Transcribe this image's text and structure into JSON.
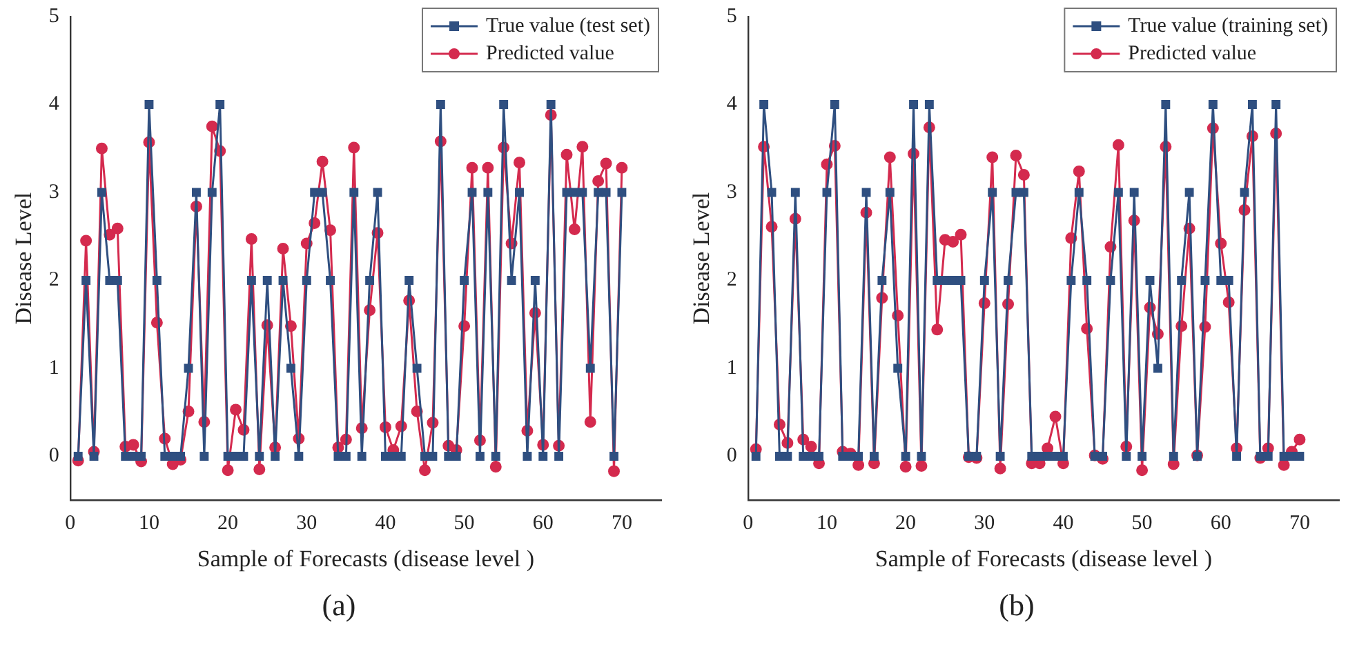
{
  "chart_data": [
    {
      "type": "line",
      "xlabel": "Sample of Forecasts (disease level )",
      "ylabel": "Disease Level",
      "annotations": [
        "(a)"
      ],
      "legend": "top right",
      "grid": false,
      "line_style": "solid",
      "xlim": [
        0,
        75
      ],
      "ylim": [
        -0.5,
        5
      ],
      "xticks": [
        0,
        10,
        20,
        30,
        40,
        50,
        60,
        70
      ],
      "yticks": [
        0,
        1,
        2,
        3,
        4,
        5
      ],
      "x": [
        1,
        2,
        3,
        4,
        5,
        6,
        7,
        8,
        9,
        10,
        11,
        12,
        13,
        14,
        15,
        16,
        17,
        18,
        19,
        20,
        21,
        22,
        23,
        24,
        25,
        26,
        27,
        28,
        29,
        30,
        31,
        32,
        33,
        34,
        35,
        36,
        37,
        38,
        39,
        40,
        41,
        42,
        43,
        44,
        45,
        46,
        47,
        48,
        49,
        50,
        51,
        52,
        53,
        54,
        55,
        56,
        57,
        58,
        59,
        60,
        61,
        62,
        63,
        64,
        65,
        66,
        67,
        68,
        69,
        70
      ],
      "series": [
        {
          "name": "True value (test set)",
          "color": "#2f4f80",
          "marker": "square",
          "values": [
            0,
            2,
            0,
            3,
            2,
            2,
            0,
            0,
            0,
            4,
            2,
            0,
            0,
            0,
            1,
            3,
            0,
            3,
            4,
            0,
            0,
            0,
            2,
            0,
            2,
            0,
            2,
            1,
            0,
            2,
            3,
            3,
            2,
            0,
            0,
            3,
            0,
            2,
            3,
            0,
            0,
            0,
            2,
            1,
            0,
            0,
            4,
            0,
            0,
            2,
            3,
            0,
            3,
            0,
            4,
            2,
            3,
            0,
            2,
            0,
            4,
            0,
            3,
            3,
            3,
            1,
            3,
            3,
            0,
            3
          ]
        },
        {
          "name": "Predicted value",
          "color": "#d42a4e",
          "marker": "circle",
          "values": [
            -0.05,
            2.45,
            0.05,
            3.5,
            2.52,
            2.59,
            0.11,
            0.13,
            -0.06,
            3.57,
            1.52,
            0.2,
            -0.09,
            -0.04,
            0.51,
            2.84,
            0.39,
            3.75,
            3.47,
            -0.16,
            0.53,
            0.3,
            2.47,
            -0.15,
            1.49,
            0.1,
            2.36,
            1.48,
            0.2,
            2.42,
            2.65,
            3.35,
            2.57,
            0.1,
            0.19,
            3.51,
            0.32,
            1.66,
            2.54,
            0.33,
            0.07,
            0.34,
            1.77,
            0.51,
            -0.16,
            0.38,
            3.58,
            0.12,
            0.07,
            1.48,
            3.28,
            0.18,
            3.28,
            -0.12,
            3.51,
            2.42,
            3.34,
            0.29,
            1.63,
            0.13,
            3.88,
            0.12,
            3.43,
            2.58,
            3.52,
            0.39,
            3.13,
            3.33,
            -0.17,
            3.28
          ]
        }
      ]
    },
    {
      "type": "line",
      "xlabel": "Sample of Forecasts (disease level )",
      "ylabel": "Disease Level",
      "annotations": [
        "(b)"
      ],
      "legend": "top right",
      "grid": false,
      "line_style": "solid",
      "xlim": [
        0,
        75
      ],
      "ylim": [
        -0.5,
        5
      ],
      "xticks": [
        0,
        10,
        20,
        30,
        40,
        50,
        60,
        70
      ],
      "yticks": [
        0,
        1,
        2,
        3,
        4,
        5
      ],
      "x": [
        1,
        2,
        3,
        4,
        5,
        6,
        7,
        8,
        9,
        10,
        11,
        12,
        13,
        14,
        15,
        16,
        17,
        18,
        19,
        20,
        21,
        22,
        23,
        24,
        25,
        26,
        27,
        28,
        29,
        30,
        31,
        32,
        33,
        34,
        35,
        36,
        37,
        38,
        39,
        40,
        41,
        42,
        43,
        44,
        45,
        46,
        47,
        48,
        49,
        50,
        51,
        52,
        53,
        54,
        55,
        56,
        57,
        58,
        59,
        60,
        61,
        62,
        63,
        64,
        65,
        66,
        67,
        68,
        69,
        70
      ],
      "series": [
        {
          "name": "True value (training set)",
          "color": "#2f4f80",
          "marker": "square",
          "values": [
            0,
            4,
            3,
            0,
            0,
            3,
            0,
            0,
            0,
            3,
            4,
            0,
            0,
            0,
            3,
            0,
            2,
            3,
            1,
            0,
            4,
            0,
            4,
            2,
            2,
            2,
            2,
            0,
            0,
            2,
            3,
            0,
            2,
            3,
            3,
            0,
            0,
            0,
            0,
            0,
            2,
            3,
            2,
            0,
            0,
            2,
            3,
            0,
            3,
            0,
            2,
            1,
            4,
            0,
            2,
            3,
            0,
            2,
            4,
            2,
            2,
            0,
            3,
            4,
            0,
            0,
            4,
            0,
            0,
            0
          ]
        },
        {
          "name": "Predicted value",
          "color": "#d42a4e",
          "marker": "circle",
          "values": [
            0.08,
            3.52,
            2.61,
            0.36,
            0.15,
            2.7,
            0.19,
            0.11,
            -0.08,
            3.32,
            3.53,
            0.05,
            0.03,
            -0.1,
            2.77,
            -0.08,
            1.8,
            3.4,
            1.6,
            -0.12,
            3.44,
            -0.11,
            3.74,
            1.44,
            2.46,
            2.44,
            2.52,
            -0.01,
            -0.02,
            1.74,
            3.4,
            -0.14,
            1.73,
            3.42,
            3.2,
            -0.08,
            -0.08,
            0.09,
            0.45,
            -0.08,
            2.48,
            3.24,
            1.45,
            0.01,
            -0.03,
            2.38,
            3.54,
            0.11,
            2.68,
            -0.16,
            1.69,
            1.39,
            3.52,
            -0.09,
            1.48,
            2.59,
            0.01,
            1.47,
            3.73,
            2.42,
            1.75,
            0.09,
            2.8,
            3.64,
            -0.02,
            0.09,
            3.67,
            -0.1,
            0.05,
            0.19
          ]
        }
      ]
    }
  ]
}
